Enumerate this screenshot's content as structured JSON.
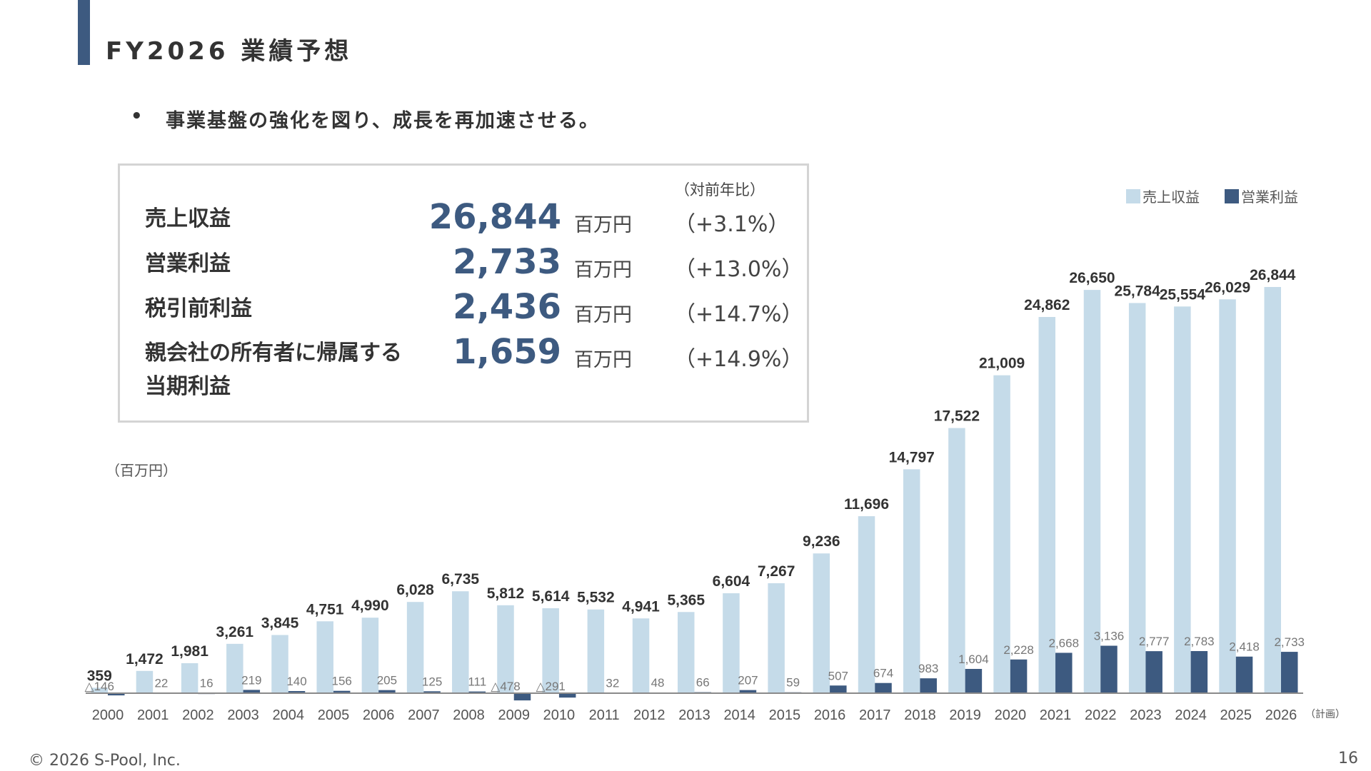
{
  "header": {
    "title": "FY2026 業績予想"
  },
  "bullet": "事業基盤の強化を図り、成長を再加速させる。",
  "summary": {
    "yoy_header": "（対前年比）",
    "rows": [
      {
        "label": "売上収益",
        "value": "26,844",
        "unit": "百万円",
        "yoy": "（+3.1%）"
      },
      {
        "label": "営業利益",
        "value": "2,733",
        "unit": "百万円",
        "yoy": "（+13.0%）"
      },
      {
        "label": "税引前利益",
        "value": "2,436",
        "unit": "百万円",
        "yoy": "（+14.7%）"
      },
      {
        "label": "親会社の所有者に帰属する当期利益",
        "label_line1": "親会社の所有者に帰属する",
        "label_line2": "当期利益",
        "value": "1,659",
        "unit": "百万円",
        "yoy": "（+14.9%）"
      }
    ]
  },
  "chart_data": {
    "type": "bar",
    "unit_label": "（百万円）",
    "plan_note": "（計画）",
    "categories": [
      "2000",
      "2001",
      "2002",
      "2003",
      "2004",
      "2005",
      "2006",
      "2007",
      "2008",
      "2009",
      "2010",
      "2011",
      "2012",
      "2013",
      "2014",
      "2015",
      "2016",
      "2017",
      "2018",
      "2019",
      "2020",
      "2021",
      "2022",
      "2023",
      "2024",
      "2025",
      "2026"
    ],
    "series": [
      {
        "name": "売上収益",
        "color": "#c5dbe9",
        "values": [
          359,
          1472,
          1981,
          3261,
          3845,
          4751,
          4990,
          6028,
          6735,
          5812,
          5614,
          5532,
          4941,
          5365,
          6604,
          7267,
          9236,
          11696,
          14797,
          17522,
          21009,
          24862,
          26650,
          25784,
          25554,
          26029,
          26844
        ],
        "labels": [
          "359",
          "1,472",
          "1,981",
          "3,261",
          "3,845",
          "4,751",
          "4,990",
          "6,028",
          "6,735",
          "5,812",
          "5,614",
          "5,532",
          "4,941",
          "5,365",
          "6,604",
          "7,267",
          "9,236",
          "11,696",
          "14,797",
          "17,522",
          "21,009",
          "24,862",
          "26,650",
          "25,784",
          "25,554",
          "26,029",
          "26,844"
        ]
      },
      {
        "name": "営業利益",
        "color": "#3d5a80",
        "values": [
          -146,
          22,
          16,
          219,
          140,
          156,
          205,
          125,
          111,
          -478,
          -291,
          32,
          48,
          66,
          207,
          59,
          507,
          674,
          983,
          1604,
          2228,
          2668,
          3136,
          2777,
          2783,
          2418,
          2733
        ],
        "labels": [
          "△146",
          "22",
          "16",
          "219",
          "140",
          "156",
          "205",
          "125",
          "111",
          "△478",
          "△291",
          "32",
          "48",
          "66",
          "207",
          "59",
          "507",
          "674",
          "983",
          "1,604",
          "2,228",
          "2,668",
          "3,136",
          "2,777",
          "2,783",
          "2,418",
          "2,733"
        ]
      }
    ],
    "legend": "top-right",
    "grid": false
  },
  "footer": {
    "copyright": "© 2026 S-Pool, Inc.",
    "page": "16"
  }
}
